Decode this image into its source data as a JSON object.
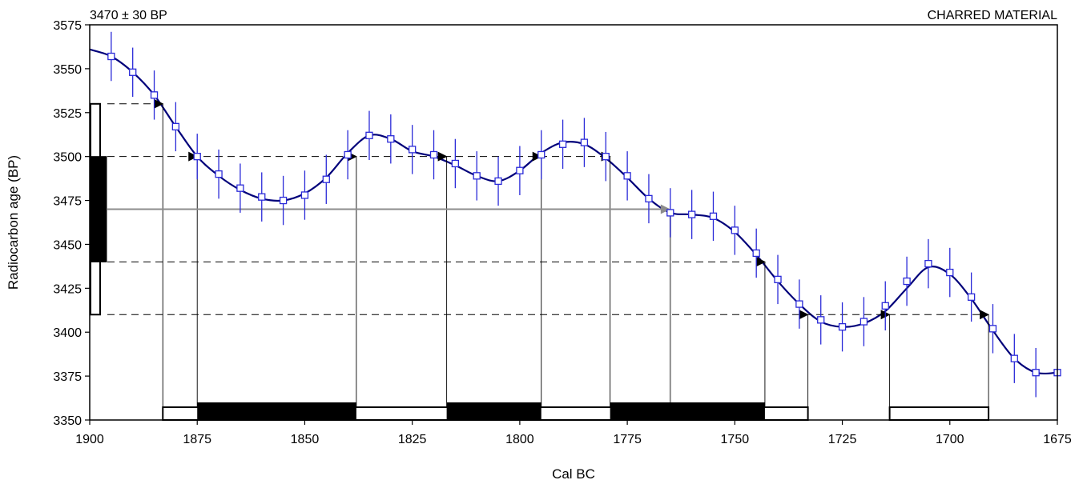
{
  "chart_data": {
    "type": "line",
    "title_left": "3470 ± 30 BP",
    "title_right": "CHARRED MATERIAL",
    "xlabel": "Cal BC",
    "ylabel": "Radiocarbon age (BP)",
    "xlim": [
      1900,
      1675
    ],
    "ylim": [
      3350,
      3575
    ],
    "x_ticks": [
      1900,
      1875,
      1850,
      1825,
      1800,
      1775,
      1750,
      1725,
      1700,
      1675
    ],
    "y_ticks": [
      3350,
      3375,
      3400,
      3425,
      3450,
      3475,
      3500,
      3525,
      3550,
      3575
    ],
    "grid": false,
    "measured_age": 3470,
    "intercept_age_bc": 1765,
    "sigma1_range": [
      3440,
      3500
    ],
    "sigma2_range": [
      3410,
      3530
    ],
    "calibration_curve": {
      "x": [
        1900,
        1895,
        1890,
        1885,
        1880,
        1875,
        1870,
        1865,
        1860,
        1855,
        1850,
        1845,
        1840,
        1835,
        1830,
        1825,
        1820,
        1815,
        1810,
        1805,
        1800,
        1795,
        1790,
        1785,
        1780,
        1775,
        1770,
        1765,
        1760,
        1755,
        1750,
        1745,
        1740,
        1735,
        1730,
        1725,
        1720,
        1715,
        1710,
        1705,
        1700,
        1695,
        1690,
        1685,
        1680,
        1675
      ],
      "y": [
        3561,
        3557,
        3548,
        3535,
        3517,
        3500,
        3489,
        3481,
        3476,
        3475,
        3479,
        3488,
        3502,
        3512,
        3510,
        3503,
        3500,
        3495,
        3489,
        3486,
        3492,
        3502,
        3508,
        3507,
        3499,
        3488,
        3476,
        3468,
        3467,
        3465,
        3457,
        3444,
        3429,
        3416,
        3406,
        3403,
        3405,
        3412,
        3425,
        3437,
        3433,
        3419,
        3401,
        3385,
        3377,
        3377
      ]
    },
    "data_points": {
      "x": [
        1895,
        1890,
        1885,
        1880,
        1875,
        1870,
        1865,
        1860,
        1855,
        1850,
        1845,
        1840,
        1835,
        1830,
        1825,
        1820,
        1815,
        1810,
        1805,
        1800,
        1795,
        1790,
        1785,
        1780,
        1775,
        1770,
        1765,
        1760,
        1755,
        1750,
        1745,
        1740,
        1735,
        1730,
        1725,
        1720,
        1715,
        1710,
        1705,
        1700,
        1695,
        1690,
        1685,
        1680,
        1675
      ],
      "y": [
        3557,
        3548,
        3535,
        3517,
        3500,
        3490,
        3482,
        3477,
        3475,
        3478,
        3487,
        3501,
        3512,
        3510,
        3504,
        3501,
        3496,
        3489,
        3486,
        3492,
        3501,
        3507,
        3508,
        3500,
        3489,
        3476,
        3468,
        3467,
        3466,
        3458,
        3445,
        3430,
        3416,
        3407,
        3403,
        3406,
        3415,
        3429,
        3439,
        3434,
        3420,
        3402,
        3385,
        3377,
        3377
      ],
      "error": [
        14,
        14,
        14,
        14,
        13,
        14,
        14,
        14,
        14,
        14,
        14,
        14,
        14,
        14,
        14,
        14,
        14,
        14,
        14,
        14,
        14,
        14,
        14,
        14,
        14,
        14,
        14,
        14,
        14,
        14,
        14,
        14,
        14,
        14,
        14,
        14,
        14,
        14,
        14,
        14,
        14,
        14,
        14,
        14,
        0
      ]
    },
    "sigma1_levels": [
      3500,
      3440
    ],
    "sigma1_intercepts": {
      "3500": [
        1875,
        1838,
        1817,
        1795,
        1779
      ],
      "3440": [
        1743
      ]
    },
    "sigma2_levels": [
      3530,
      3410
    ],
    "sigma2_intercepts": {
      "3530": [
        1883
      ],
      "3410": [
        1733,
        1714,
        1691
      ]
    },
    "sigma1_cal_ranges": [
      [
        1875,
        1838
      ],
      [
        1817,
        1795
      ],
      [
        1779,
        1743
      ]
    ],
    "sigma2_cal_ranges": [
      [
        1883,
        1733
      ],
      [
        1714,
        1691
      ]
    ],
    "colors": {
      "curve": "#00007a",
      "points": "#2a2ad8",
      "intercept": "#8c8c8c",
      "axis": "#000000"
    }
  }
}
